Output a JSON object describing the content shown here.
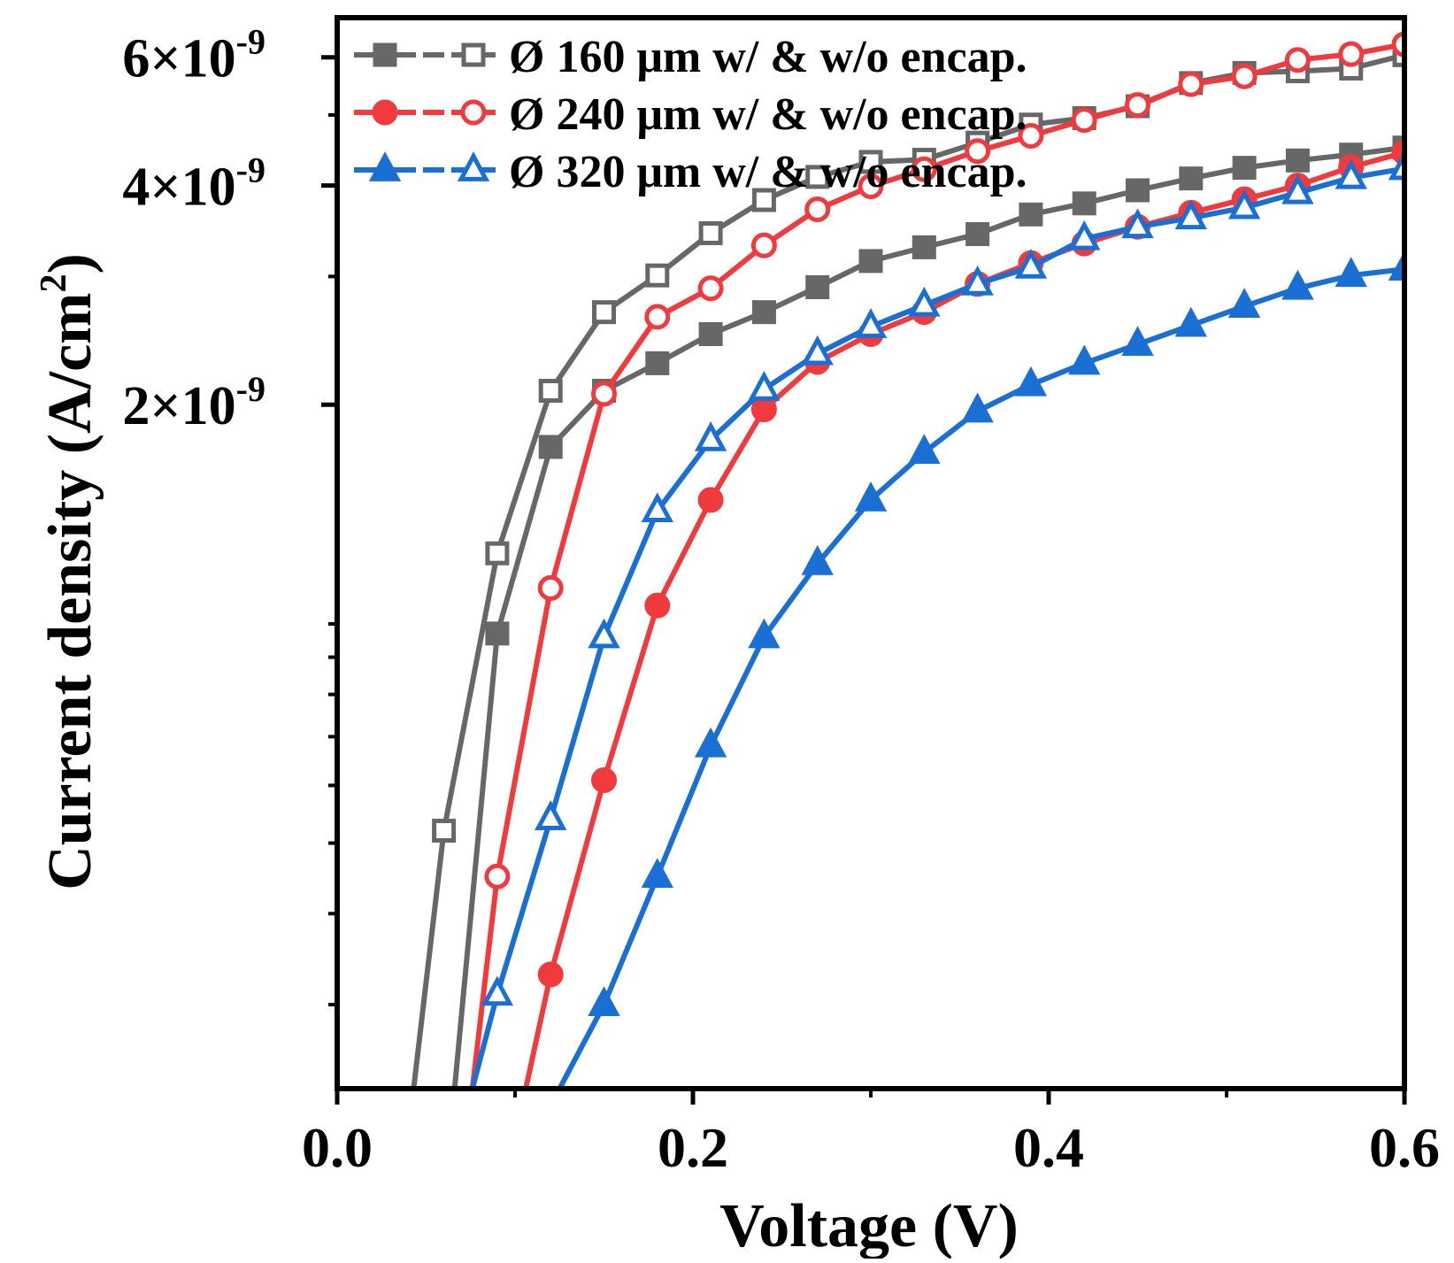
{
  "chart_data": {
    "type": "line",
    "xlabel": "Voltage (V)",
    "ylabel": "Current density (A/cm",
    "ylabel_superscript": "2",
    "ylabel_suffix": ")",
    "xlim": [
      0.0,
      0.6
    ],
    "ylim": [
      2.3e-10,
      6.8e-09
    ],
    "yscale": "log",
    "grid": false,
    "legend_position": "top-left",
    "x_ticks": [
      {
        "value": 0.0,
        "label": "0.0"
      },
      {
        "value": 0.2,
        "label": "0.2"
      },
      {
        "value": 0.4,
        "label": "0.4"
      },
      {
        "value": 0.6,
        "label": "0.6"
      }
    ],
    "x_minor_ticks": [
      0.1,
      0.3,
      0.5
    ],
    "y_ticks": [
      {
        "value": 2e-09,
        "mantissa": "2×10",
        "exponent": "-9"
      },
      {
        "value": 4e-09,
        "mantissa": "4×10",
        "exponent": "-9"
      },
      {
        "value": 6e-09,
        "mantissa": "6×10",
        "exponent": "-9"
      }
    ],
    "y_minor_ticks": [
      3e-10,
      4e-10,
      5e-10,
      6e-10,
      7e-10,
      8e-10,
      9e-10,
      1e-09,
      3e-09,
      5e-09
    ],
    "legend": [
      {
        "text": "Ø 160 μm w/ & w/o encap.",
        "color": "#676767",
        "marker": "square"
      },
      {
        "text": "Ø 240 μm w/ & w/o encap.",
        "color": "#f03a3e",
        "marker": "circle"
      },
      {
        "text": "Ø 320 μm w/ & w/o encap.",
        "color": "#1a6fd4",
        "marker": "triangle"
      }
    ],
    "series": [
      {
        "color": "#676767",
        "marker": "square",
        "filled": true,
        "x": [
          0.066,
          0.09,
          0.12,
          0.15,
          0.18,
          0.21,
          0.24,
          0.27,
          0.3,
          0.33,
          0.36,
          0.39,
          0.42,
          0.45,
          0.48,
          0.51,
          0.54,
          0.57,
          0.6
        ],
        "y": [
          2.3e-10,
          9.7e-10,
          1.75e-09,
          2.09e-09,
          2.28e-09,
          2.5e-09,
          2.68e-09,
          2.9e-09,
          3.15e-09,
          3.29e-09,
          3.43e-09,
          3.65e-09,
          3.78e-09,
          3.94e-09,
          4.09e-09,
          4.23e-09,
          4.33e-09,
          4.41e-09,
          4.51e-09
        ]
      },
      {
        "color": "#676767",
        "marker": "square",
        "filled": false,
        "x": [
          0.043,
          0.06,
          0.09,
          0.12,
          0.15,
          0.18,
          0.21,
          0.24,
          0.27,
          0.3,
          0.33,
          0.36,
          0.39,
          0.42,
          0.45,
          0.48,
          0.51,
          0.54,
          0.57,
          0.6
        ],
        "y": [
          2.3e-10,
          5.2e-10,
          1.25e-09,
          2.09e-09,
          2.68e-09,
          3.01e-09,
          3.44e-09,
          3.82e-09,
          4.11e-09,
          4.31e-09,
          4.34e-09,
          4.58e-09,
          4.85e-09,
          4.95e-09,
          5.14e-09,
          5.53e-09,
          5.71e-09,
          5.74e-09,
          5.79e-09,
          6.04e-09
        ]
      },
      {
        "color": "#f03a3e",
        "marker": "circle",
        "filled": true,
        "x": [
          0.106,
          0.12,
          0.15,
          0.18,
          0.21,
          0.24,
          0.27,
          0.3,
          0.33,
          0.36,
          0.39,
          0.42,
          0.45,
          0.48,
          0.51,
          0.54,
          0.57,
          0.6
        ],
        "y": [
          2.3e-10,
          3.3e-10,
          6.1e-10,
          1.06e-09,
          1.48e-09,
          1.97e-09,
          2.29e-09,
          2.5e-09,
          2.68e-09,
          2.93e-09,
          3.13e-09,
          3.33e-09,
          3.51e-09,
          3.67e-09,
          3.83e-09,
          4e-09,
          4.24e-09,
          4.44e-09
        ]
      },
      {
        "color": "#f03a3e",
        "marker": "circle",
        "filled": false,
        "x": [
          0.076,
          0.09,
          0.12,
          0.15,
          0.18,
          0.21,
          0.24,
          0.27,
          0.3,
          0.33,
          0.36,
          0.39,
          0.42,
          0.45,
          0.48,
          0.51,
          0.54,
          0.57,
          0.6
        ],
        "y": [
          2.3e-10,
          4.5e-10,
          1.12e-09,
          2.07e-09,
          2.64e-09,
          2.89e-09,
          3.31e-09,
          3.71e-09,
          3.99e-09,
          4.21e-09,
          4.46e-09,
          4.68e-09,
          4.92e-09,
          5.16e-09,
          5.51e-09,
          5.65e-09,
          5.95e-09,
          6.06e-09,
          6.25e-09
        ]
      },
      {
        "color": "#1a6fd4",
        "marker": "triangle",
        "filled": true,
        "x": [
          0.125,
          0.15,
          0.18,
          0.21,
          0.24,
          0.27,
          0.3,
          0.33,
          0.36,
          0.39,
          0.42,
          0.45,
          0.48,
          0.51,
          0.54,
          0.57,
          0.6
        ],
        "y": [
          2.3e-10,
          3e-10,
          4.5e-10,
          6.8e-10,
          9.6e-10,
          1.21e-09,
          1.48e-09,
          1.72e-09,
          1.96e-09,
          2.13e-09,
          2.28e-09,
          2.42e-09,
          2.57e-09,
          2.73e-09,
          2.89e-09,
          3.01e-09,
          3.07e-09
        ]
      },
      {
        "color": "#1a6fd4",
        "marker": "triangle",
        "filled": false,
        "x": [
          0.076,
          0.09,
          0.12,
          0.15,
          0.18,
          0.21,
          0.24,
          0.27,
          0.3,
          0.33,
          0.36,
          0.39,
          0.42,
          0.45,
          0.48,
          0.51,
          0.54,
          0.57,
          0.6
        ],
        "y": [
          2.3e-10,
          3.1e-10,
          5.4e-10,
          9.6e-10,
          1.43e-09,
          1.79e-09,
          2.1e-09,
          2.35e-09,
          2.56e-09,
          2.74e-09,
          2.93e-09,
          3.09e-09,
          3.38e-09,
          3.51e-09,
          3.61e-09,
          3.73e-09,
          3.91e-09,
          4.1e-09,
          4.22e-09
        ]
      }
    ]
  }
}
